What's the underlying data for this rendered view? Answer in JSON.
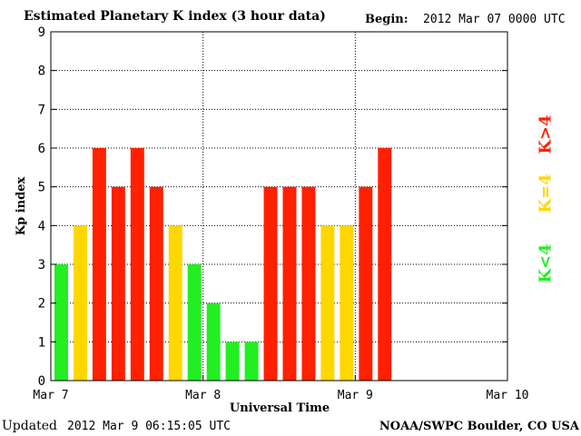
{
  "header": {
    "title": "Estimated Planetary K index (3 hour data)",
    "begin_label": "Begin:",
    "begin_value": "2012 Mar 07 0000 UTC"
  },
  "footer": {
    "updated_label": "Updated",
    "updated_value": "2012 Mar  9 06:15:05 UTC",
    "credit": "NOAA/SWPC Boulder, CO USA"
  },
  "legend": [
    {
      "label": "K>4",
      "color": "#ff2000"
    },
    {
      "label": "K=4",
      "color": "#ffd700"
    },
    {
      "label": "K<4",
      "color": "#22ee22"
    }
  ],
  "chart_data": {
    "type": "bar",
    "title": "Estimated Planetary K index (3 hour data)",
    "xlabel": "Universal Time",
    "ylabel": "Kp index",
    "x_ticks": [
      "Mar 7",
      "Mar 8",
      "Mar 9",
      "Mar 10"
    ],
    "y_ticks": [
      0,
      1,
      2,
      3,
      4,
      5,
      6,
      7,
      8,
      9
    ],
    "ylim": [
      0,
      9
    ],
    "x_range_intervals": 24,
    "interval_hours": 3,
    "grid": true,
    "colors": {
      "below4": "#22ee22",
      "equal4": "#ffd700",
      "above4": "#ff2000"
    },
    "values": [
      3,
      4,
      6,
      5,
      6,
      5,
      4,
      3,
      2,
      1,
      1,
      5,
      5,
      5,
      4,
      4,
      5,
      6
    ]
  }
}
